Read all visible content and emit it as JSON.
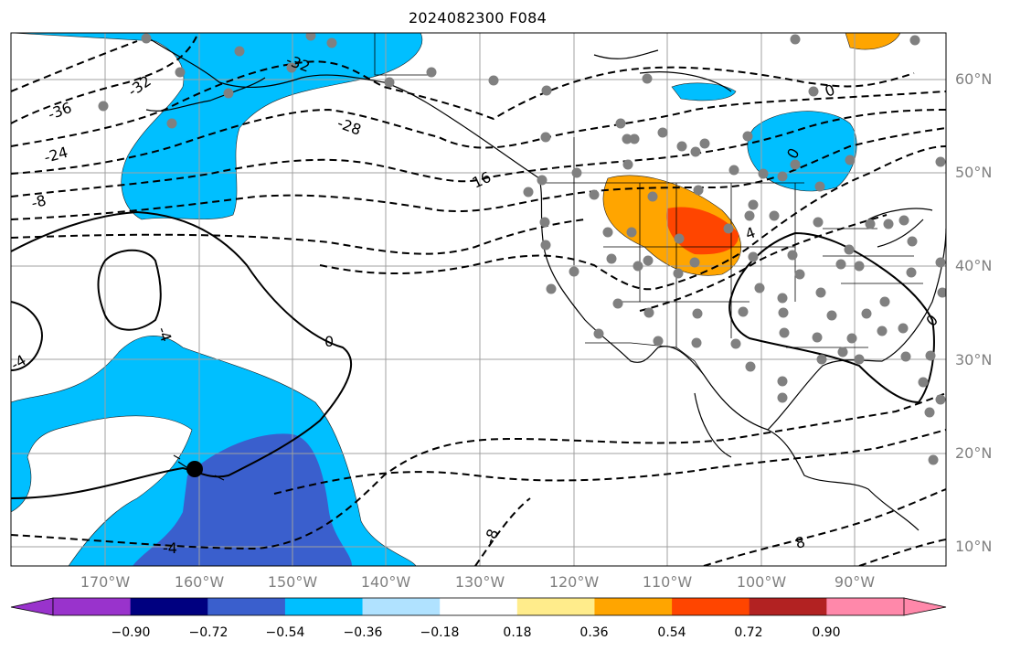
{
  "title": "2024082300 F084",
  "lat_labels": [
    "60°N",
    "50°N",
    "40°N",
    "30°N",
    "20°N",
    "10°N"
  ],
  "lon_labels": [
    "170°W",
    "160°W",
    "150°W",
    "140°W",
    "130°W",
    "120°W",
    "110°W",
    "100°W",
    "90°W"
  ],
  "contour_labels": {
    "c1": "-36",
    "c2": "-32",
    "c3": "-32",
    "c4": "-28",
    "c5": "-24",
    "c6": "-8",
    "c7": "16",
    "c8": "0",
    "c9": "0",
    "c10": "-4",
    "c11": "-4",
    "c12": "4",
    "c13": "0",
    "c14": "0",
    "c15": "-8",
    "c16": "8",
    "c17": "-4"
  },
  "colorbar": {
    "labels": [
      "−0.90",
      "−0.72",
      "−0.54",
      "−0.36",
      "−0.18",
      "0.18",
      "0.36",
      "0.54",
      "0.72",
      "0.90"
    ],
    "colors": [
      "#9933cc",
      "#000080",
      "#3a5fcd",
      "#00bfff",
      "#b0e2ff",
      "#ffffff",
      "#ffec8b",
      "#ffa500",
      "#ff4500",
      "#b22222",
      "#ff88aa"
    ]
  }
}
